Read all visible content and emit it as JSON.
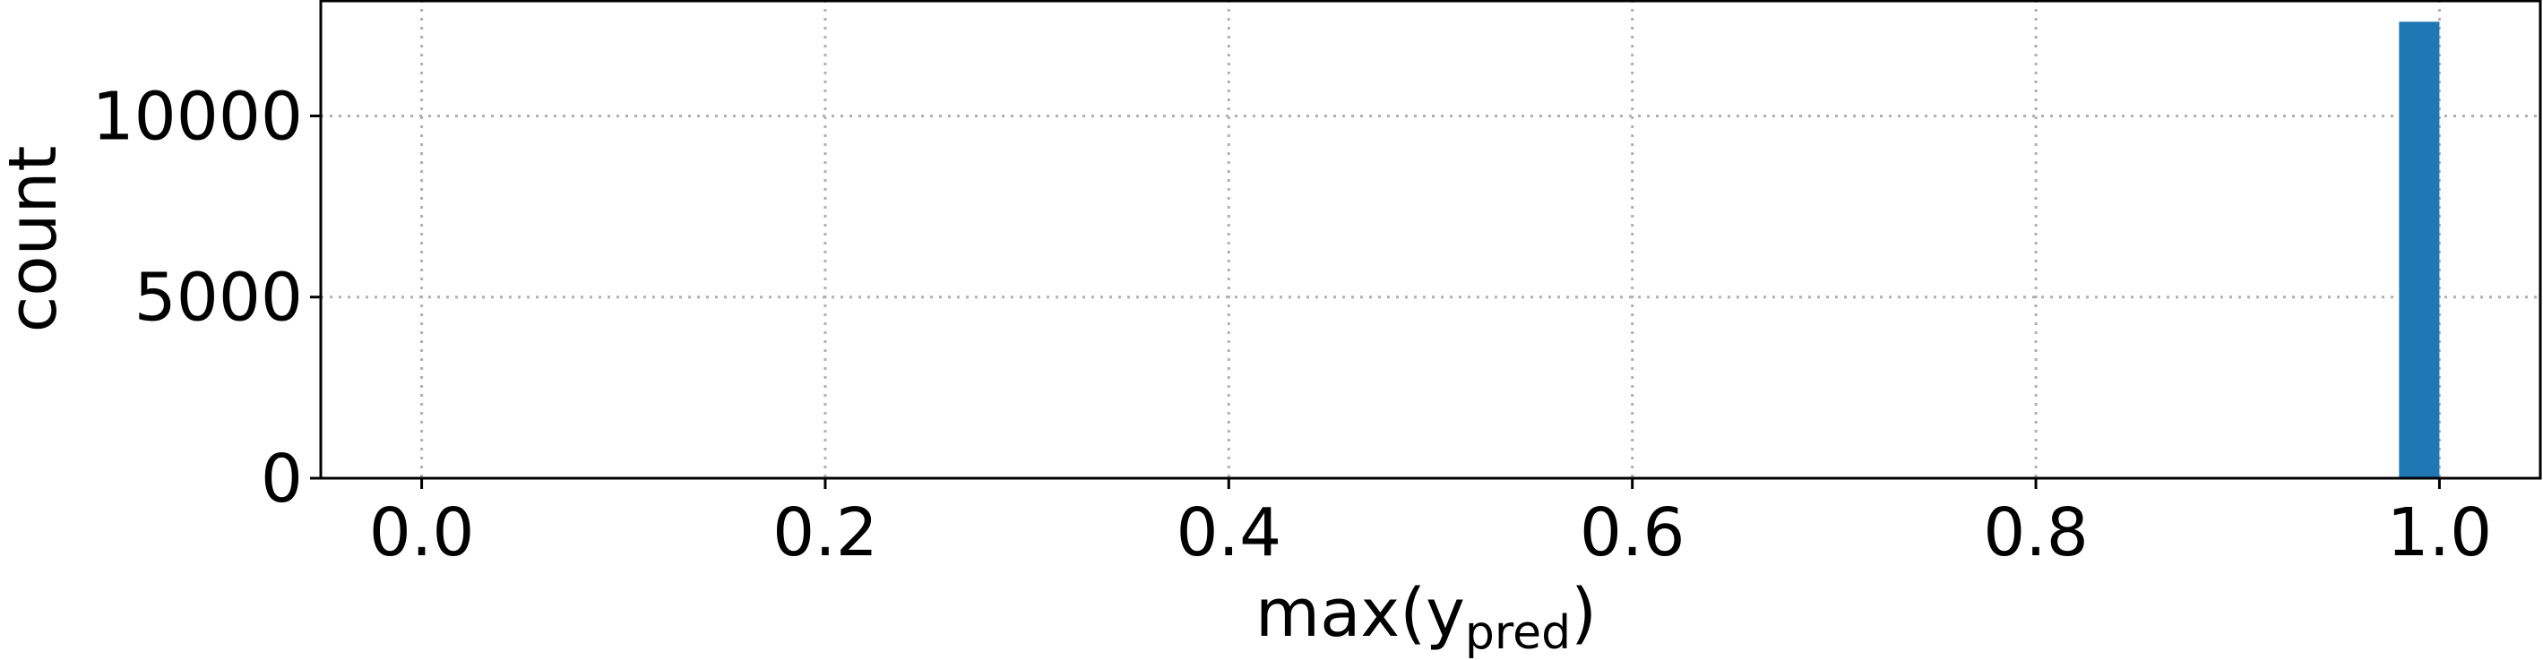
{
  "chart_data": {
    "type": "bar",
    "title": "",
    "xlabel": "max(y",
    "xlabel_subscript": "pred",
    "xlabel_close": ")",
    "ylabel": "count",
    "xlim": [
      -0.05,
      1.05
    ],
    "ylim": [
      0,
      13200
    ],
    "xticks": [
      "0.0",
      "0.2",
      "0.4",
      "0.6",
      "0.8",
      "1.0"
    ],
    "yticks": [
      "0",
      "5000",
      "10000"
    ],
    "grid": true,
    "bar_color": "#1f77b4",
    "bins": [
      {
        "x0": 0.98,
        "x1": 1.0,
        "count": 12600
      }
    ]
  }
}
